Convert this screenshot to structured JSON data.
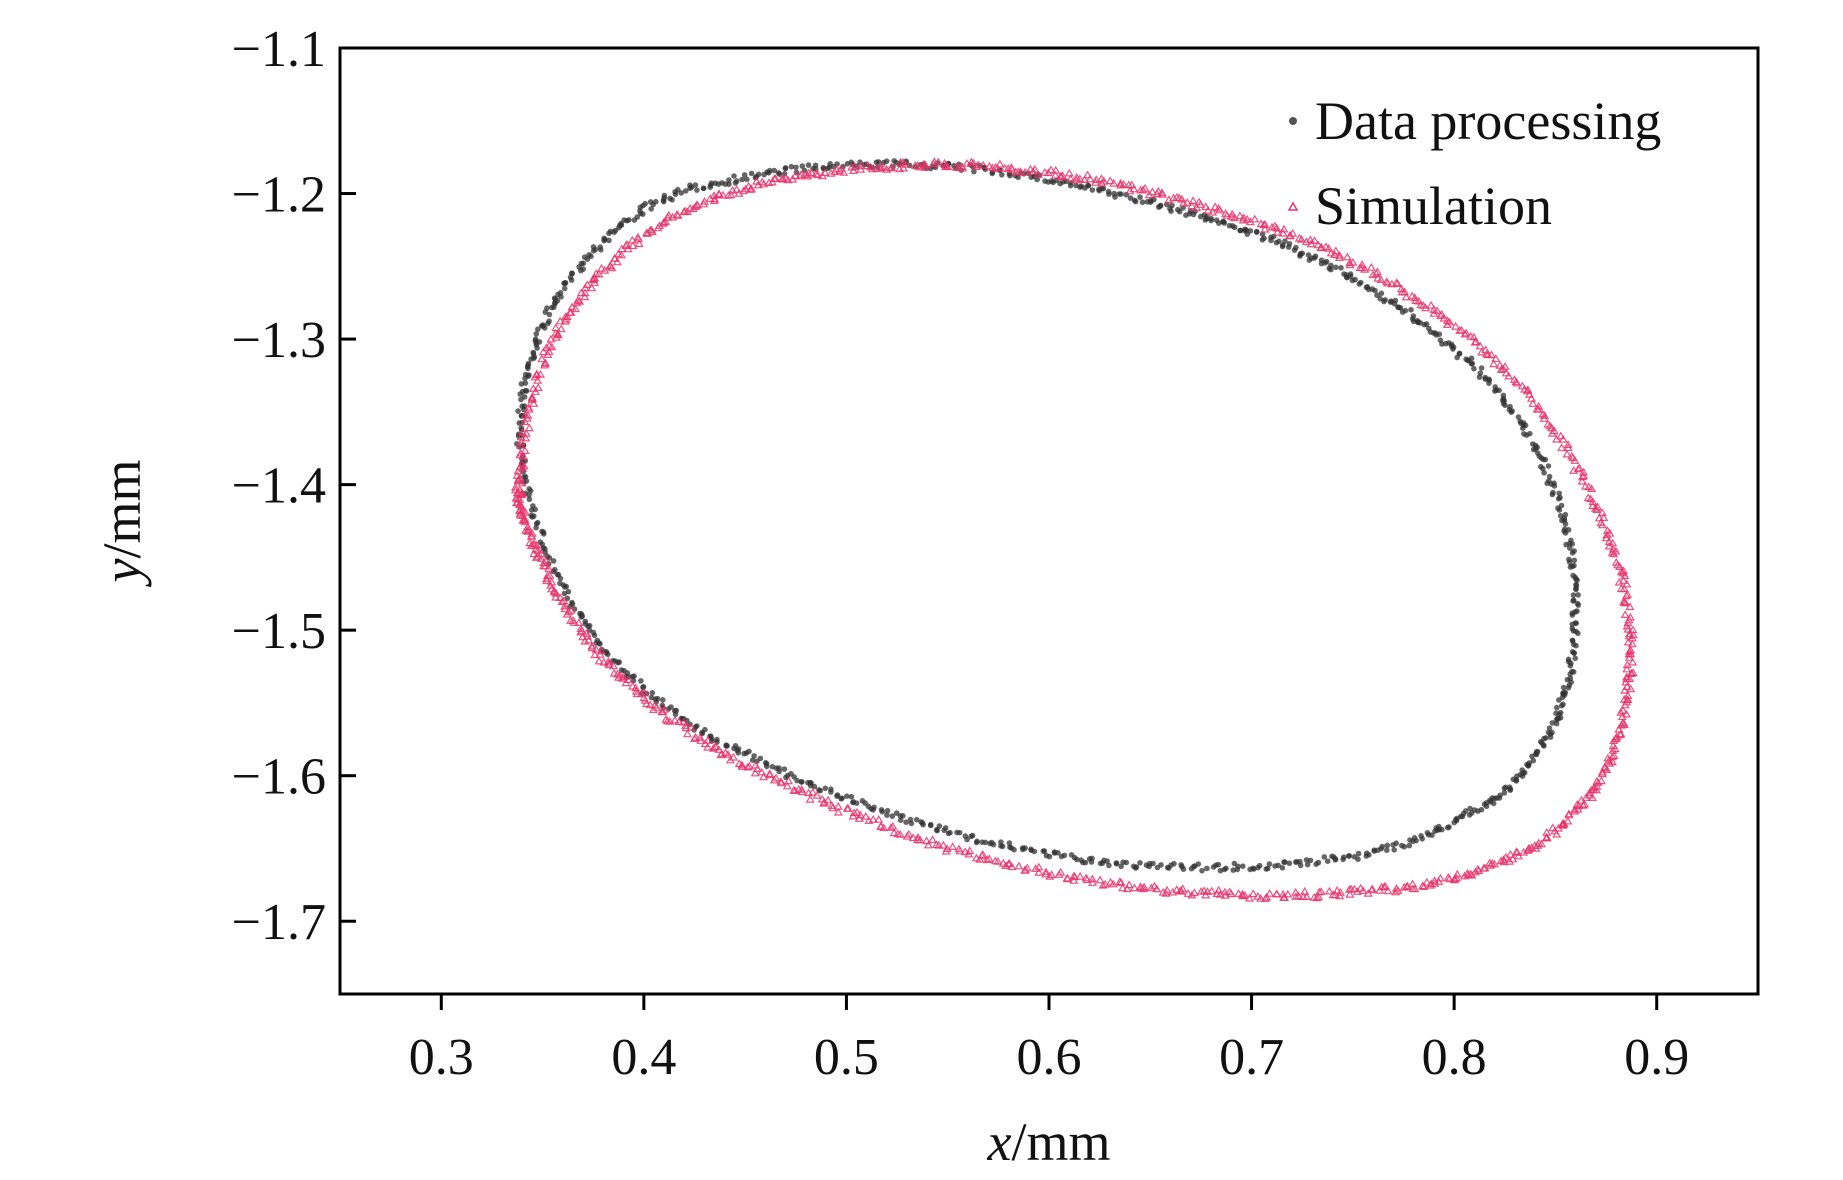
{
  "chart_data": {
    "type": "scatter",
    "xlabel": {
      "var": "x",
      "unit": "/mm"
    },
    "ylabel": {
      "var": "y",
      "unit": "/mm"
    },
    "xlim": [
      0.25,
      0.95
    ],
    "ylim": [
      -1.75,
      -1.1
    ],
    "xticks": [
      "0.3",
      "0.4",
      "0.5",
      "0.6",
      "0.7",
      "0.8",
      "0.9"
    ],
    "xtick_values": [
      0.3,
      0.4,
      0.5,
      0.6,
      0.7,
      0.8,
      0.9
    ],
    "yticks": [
      "−1.1",
      "−1.2",
      "−1.3",
      "−1.4",
      "−1.5",
      "−1.6",
      "−1.7"
    ],
    "ytick_values": [
      -1.1,
      -1.2,
      -1.3,
      -1.4,
      -1.5,
      -1.6,
      -1.7
    ],
    "grid": false,
    "legend_position": "top-right",
    "series": [
      {
        "name": "Data processing",
        "color": "#333333",
        "marker": "dot",
        "x": [
          0.339,
          0.343,
          0.356,
          0.378,
          0.408,
          0.445,
          0.487,
          0.531,
          0.576,
          0.619,
          0.66,
          0.697,
          0.731,
          0.764,
          0.794,
          0.821,
          0.842,
          0.855,
          0.86,
          0.857,
          0.847,
          0.829,
          0.802,
          0.767,
          0.724,
          0.678,
          0.631,
          0.586,
          0.542,
          0.5,
          0.46,
          0.424,
          0.392,
          0.366,
          0.348,
          0.339
        ],
        "y": [
          -1.37,
          -1.32,
          -1.275,
          -1.235,
          -1.205,
          -1.19,
          -1.182,
          -1.18,
          -1.185,
          -1.196,
          -1.21,
          -1.225,
          -1.245,
          -1.27,
          -1.3,
          -1.335,
          -1.38,
          -1.43,
          -1.48,
          -1.53,
          -1.57,
          -1.605,
          -1.63,
          -1.65,
          -1.66,
          -1.663,
          -1.66,
          -1.65,
          -1.635,
          -1.615,
          -1.592,
          -1.565,
          -1.53,
          -1.485,
          -1.43,
          -1.37
        ]
      },
      {
        "name": "Simulation",
        "color": "#e8336a",
        "marker": "triangle",
        "x": [
          0.339,
          0.347,
          0.364,
          0.39,
          0.424,
          0.463,
          0.506,
          0.55,
          0.595,
          0.64,
          0.684,
          0.726,
          0.766,
          0.803,
          0.837,
          0.863,
          0.88,
          0.887,
          0.884,
          0.873,
          0.852,
          0.822,
          0.785,
          0.742,
          0.698,
          0.652,
          0.604,
          0.556,
          0.51,
          0.467,
          0.428,
          0.395,
          0.368,
          0.35,
          0.34,
          0.339
        ],
        "y": [
          -1.39,
          -1.33,
          -1.28,
          -1.24,
          -1.21,
          -1.192,
          -1.183,
          -1.18,
          -1.185,
          -1.196,
          -1.212,
          -1.232,
          -1.26,
          -1.295,
          -1.34,
          -1.395,
          -1.45,
          -1.505,
          -1.555,
          -1.6,
          -1.636,
          -1.66,
          -1.675,
          -1.681,
          -1.682,
          -1.678,
          -1.668,
          -1.652,
          -1.63,
          -1.604,
          -1.575,
          -1.54,
          -1.5,
          -1.455,
          -1.42,
          -1.39
        ]
      }
    ]
  }
}
